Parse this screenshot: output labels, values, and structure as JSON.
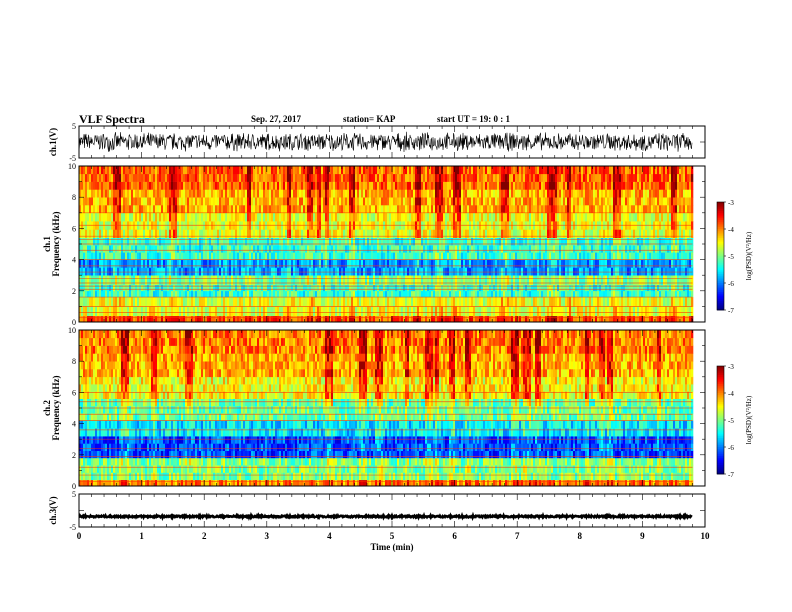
{
  "header": {
    "title": "VLF Spectra",
    "date": "Sep. 27, 2017",
    "station": "station= KAP",
    "start": "start  UT =   19: 0  : 1"
  },
  "chart_data": [
    {
      "type": "line",
      "name": "ch1-waveform",
      "ylabel": "ch.1(V)",
      "ylim": [
        -5,
        5
      ],
      "yticks": [
        "5",
        "-5"
      ],
      "xlim": [
        0,
        10
      ],
      "waveform": {
        "center": 0,
        "amplitude": 3.2
      }
    },
    {
      "type": "heatmap",
      "name": "ch1-spectrogram",
      "ylabel": "ch.1\nFrequency (kHz)",
      "xlim": [
        0,
        10
      ],
      "data_xmax": 9.8,
      "ylim": [
        0,
        10
      ],
      "yticks": [
        "0",
        "2",
        "4",
        "6",
        "8",
        "10"
      ],
      "colorbar": {
        "label": "log(PSD)(V²/Hz)",
        "range": [
          -7,
          -3
        ],
        "ticks": [
          "-3",
          "-4",
          "-5",
          "-6",
          "-7"
        ]
      },
      "bands": [
        {
          "f": [
            0,
            0.4
          ],
          "v": -3.8
        },
        {
          "f": [
            0.4,
            1.6
          ],
          "v": -4.6
        },
        {
          "f": [
            1.6,
            2.4
          ],
          "v": -5.3
        },
        {
          "f": [
            2.4,
            3.0
          ],
          "v": -5.0
        },
        {
          "f": [
            3.0,
            4.0
          ],
          "v": -5.9
        },
        {
          "f": [
            4.0,
            5.4
          ],
          "v": -5.3
        },
        {
          "f": [
            5.4,
            7.0
          ],
          "v": -4.6
        },
        {
          "f": [
            7.0,
            8.5
          ],
          "v": -4.2
        },
        {
          "f": [
            8.5,
            10.0
          ],
          "v": -3.9
        }
      ],
      "lines_khz": [
        0.3,
        0.6,
        1.0,
        1.6,
        2.1,
        2.3,
        2.5,
        2.8,
        3.2,
        3.6,
        4.0,
        4.6,
        5.0,
        5.3,
        5.5,
        6.2,
        7.0
      ]
    },
    {
      "type": "heatmap",
      "name": "ch2-spectrogram",
      "ylabel": "ch.2\nFrequency (kHz)",
      "xlim": [
        0,
        10
      ],
      "data_xmax": 9.8,
      "ylim": [
        0,
        10
      ],
      "yticks": [
        "0",
        "2",
        "4",
        "6",
        "8",
        "10"
      ],
      "colorbar": {
        "label": "log(PSD)(V²/Hz)",
        "range": [
          -7,
          -3
        ],
        "ticks": [
          "-3",
          "-4",
          "-5",
          "-6",
          "-7"
        ]
      },
      "bands": [
        {
          "f": [
            0,
            0.4
          ],
          "v": -4.0
        },
        {
          "f": [
            0.4,
            1.8
          ],
          "v": -5.0
        },
        {
          "f": [
            1.8,
            3.2
          ],
          "v": -6.2
        },
        {
          "f": [
            3.2,
            4.2
          ],
          "v": -5.6
        },
        {
          "f": [
            4.2,
            5.6
          ],
          "v": -5.1
        },
        {
          "f": [
            5.6,
            7.0
          ],
          "v": -4.5
        },
        {
          "f": [
            7.0,
            8.5
          ],
          "v": -4.2
        },
        {
          "f": [
            8.5,
            10.0
          ],
          "v": -4.0
        }
      ],
      "lines_khz": [
        0.3,
        0.7,
        1.2,
        1.9,
        2.4,
        3.0,
        3.6,
        4.2,
        4.6,
        5.0,
        5.4,
        6.0
      ]
    },
    {
      "type": "line",
      "name": "ch3-waveform",
      "ylabel": "ch.3(V)",
      "ylim": [
        -5,
        5
      ],
      "yticks": [
        "5",
        "-5"
      ],
      "xlim": [
        0,
        10
      ],
      "xticks": [
        "0",
        "1",
        "2",
        "3",
        "4",
        "5",
        "6",
        "7",
        "8",
        "9",
        "10"
      ],
      "xlabel": "Time  (min)",
      "waveform": {
        "center": -1.8,
        "amplitude": 0.25
      }
    }
  ]
}
